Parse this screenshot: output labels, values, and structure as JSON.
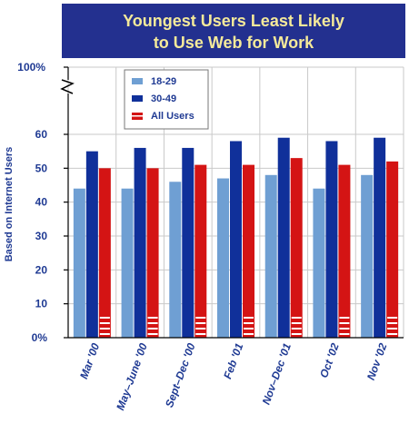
{
  "chart_data": {
    "type": "bar",
    "title_line1": "Youngest Users Least Likely",
    "title_line2": "to Use Web for Work",
    "ylabel": "Based on Internet Users",
    "ylim": [
      0,
      60
    ],
    "yticks": [
      "0%",
      "10",
      "20",
      "30",
      "40",
      "50",
      "60"
    ],
    "ytop_label": "100%",
    "categories": [
      "Mar '00",
      "May–June '00",
      "Sept–Dec '00",
      "Feb '01",
      "Nov–Dec '01",
      "Oct '02",
      "Nov '02"
    ],
    "series": [
      {
        "name": "18-29",
        "color": "#6f9fd3",
        "values": [
          44,
          44,
          46,
          47,
          48,
          44,
          48
        ]
      },
      {
        "name": "30-49",
        "color": "#10309a",
        "values": [
          55,
          56,
          56,
          58,
          59,
          58,
          59
        ]
      },
      {
        "name": "All Users",
        "color": "#d41414",
        "values": [
          50,
          50,
          51,
          51,
          53,
          51,
          52
        ]
      }
    ],
    "grid": true,
    "legend_position": "top-left"
  }
}
